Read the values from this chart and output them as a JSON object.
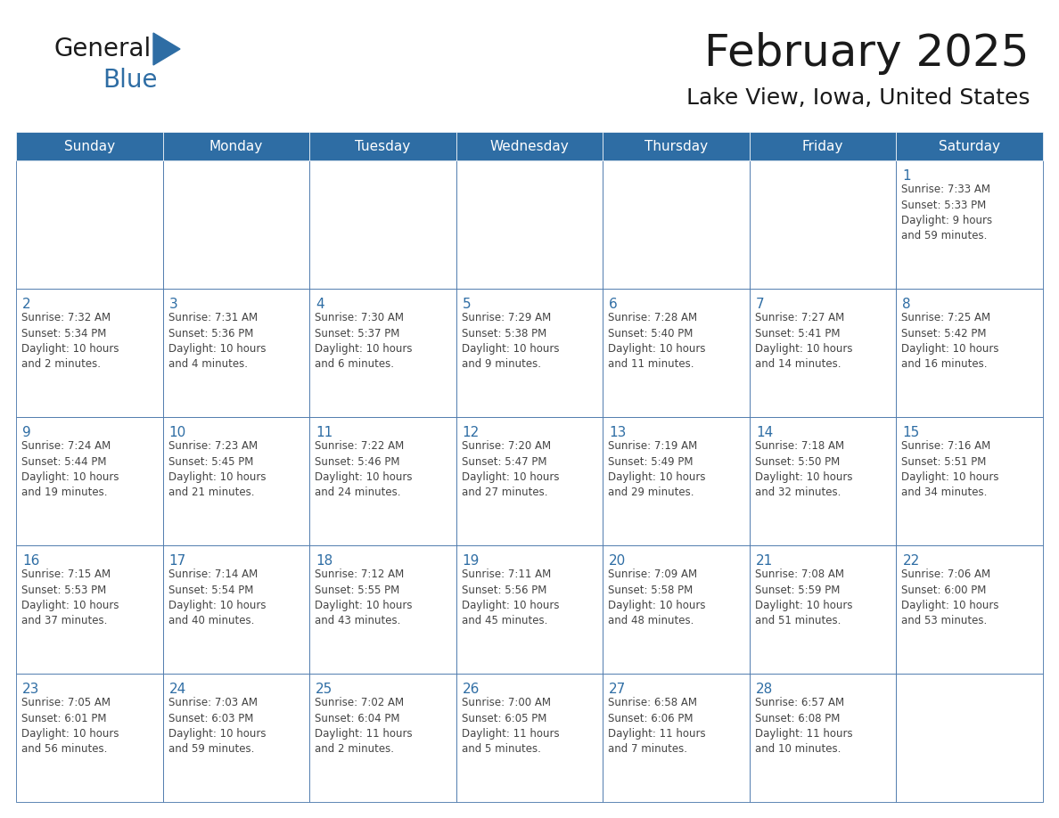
{
  "title": "February 2025",
  "subtitle": "Lake View, Iowa, United States",
  "header_color": "#2E6DA4",
  "header_text_color": "#FFFFFF",
  "cell_bg_color": "#FFFFFF",
  "cell_alt_bg": "#F2F2F2",
  "border_color": "#4472A8",
  "day_number_color": "#2E6DA4",
  "cell_text_color": "#444444",
  "days_of_week": [
    "Sunday",
    "Monday",
    "Tuesday",
    "Wednesday",
    "Thursday",
    "Friday",
    "Saturday"
  ],
  "weeks": [
    [
      {
        "day": "",
        "text": ""
      },
      {
        "day": "",
        "text": ""
      },
      {
        "day": "",
        "text": ""
      },
      {
        "day": "",
        "text": ""
      },
      {
        "day": "",
        "text": ""
      },
      {
        "day": "",
        "text": ""
      },
      {
        "day": "1",
        "text": "Sunrise: 7:33 AM\nSunset: 5:33 PM\nDaylight: 9 hours\nand 59 minutes."
      }
    ],
    [
      {
        "day": "2",
        "text": "Sunrise: 7:32 AM\nSunset: 5:34 PM\nDaylight: 10 hours\nand 2 minutes."
      },
      {
        "day": "3",
        "text": "Sunrise: 7:31 AM\nSunset: 5:36 PM\nDaylight: 10 hours\nand 4 minutes."
      },
      {
        "day": "4",
        "text": "Sunrise: 7:30 AM\nSunset: 5:37 PM\nDaylight: 10 hours\nand 6 minutes."
      },
      {
        "day": "5",
        "text": "Sunrise: 7:29 AM\nSunset: 5:38 PM\nDaylight: 10 hours\nand 9 minutes."
      },
      {
        "day": "6",
        "text": "Sunrise: 7:28 AM\nSunset: 5:40 PM\nDaylight: 10 hours\nand 11 minutes."
      },
      {
        "day": "7",
        "text": "Sunrise: 7:27 AM\nSunset: 5:41 PM\nDaylight: 10 hours\nand 14 minutes."
      },
      {
        "day": "8",
        "text": "Sunrise: 7:25 AM\nSunset: 5:42 PM\nDaylight: 10 hours\nand 16 minutes."
      }
    ],
    [
      {
        "day": "9",
        "text": "Sunrise: 7:24 AM\nSunset: 5:44 PM\nDaylight: 10 hours\nand 19 minutes."
      },
      {
        "day": "10",
        "text": "Sunrise: 7:23 AM\nSunset: 5:45 PM\nDaylight: 10 hours\nand 21 minutes."
      },
      {
        "day": "11",
        "text": "Sunrise: 7:22 AM\nSunset: 5:46 PM\nDaylight: 10 hours\nand 24 minutes."
      },
      {
        "day": "12",
        "text": "Sunrise: 7:20 AM\nSunset: 5:47 PM\nDaylight: 10 hours\nand 27 minutes."
      },
      {
        "day": "13",
        "text": "Sunrise: 7:19 AM\nSunset: 5:49 PM\nDaylight: 10 hours\nand 29 minutes."
      },
      {
        "day": "14",
        "text": "Sunrise: 7:18 AM\nSunset: 5:50 PM\nDaylight: 10 hours\nand 32 minutes."
      },
      {
        "day": "15",
        "text": "Sunrise: 7:16 AM\nSunset: 5:51 PM\nDaylight: 10 hours\nand 34 minutes."
      }
    ],
    [
      {
        "day": "16",
        "text": "Sunrise: 7:15 AM\nSunset: 5:53 PM\nDaylight: 10 hours\nand 37 minutes."
      },
      {
        "day": "17",
        "text": "Sunrise: 7:14 AM\nSunset: 5:54 PM\nDaylight: 10 hours\nand 40 minutes."
      },
      {
        "day": "18",
        "text": "Sunrise: 7:12 AM\nSunset: 5:55 PM\nDaylight: 10 hours\nand 43 minutes."
      },
      {
        "day": "19",
        "text": "Sunrise: 7:11 AM\nSunset: 5:56 PM\nDaylight: 10 hours\nand 45 minutes."
      },
      {
        "day": "20",
        "text": "Sunrise: 7:09 AM\nSunset: 5:58 PM\nDaylight: 10 hours\nand 48 minutes."
      },
      {
        "day": "21",
        "text": "Sunrise: 7:08 AM\nSunset: 5:59 PM\nDaylight: 10 hours\nand 51 minutes."
      },
      {
        "day": "22",
        "text": "Sunrise: 7:06 AM\nSunset: 6:00 PM\nDaylight: 10 hours\nand 53 minutes."
      }
    ],
    [
      {
        "day": "23",
        "text": "Sunrise: 7:05 AM\nSunset: 6:01 PM\nDaylight: 10 hours\nand 56 minutes."
      },
      {
        "day": "24",
        "text": "Sunrise: 7:03 AM\nSunset: 6:03 PM\nDaylight: 10 hours\nand 59 minutes."
      },
      {
        "day": "25",
        "text": "Sunrise: 7:02 AM\nSunset: 6:04 PM\nDaylight: 11 hours\nand 2 minutes."
      },
      {
        "day": "26",
        "text": "Sunrise: 7:00 AM\nSunset: 6:05 PM\nDaylight: 11 hours\nand 5 minutes."
      },
      {
        "day": "27",
        "text": "Sunrise: 6:58 AM\nSunset: 6:06 PM\nDaylight: 11 hours\nand 7 minutes."
      },
      {
        "day": "28",
        "text": "Sunrise: 6:57 AM\nSunset: 6:08 PM\nDaylight: 11 hours\nand 10 minutes."
      },
      {
        "day": "",
        "text": ""
      }
    ]
  ],
  "logo_text_general": "General",
  "logo_text_blue": "Blue",
  "logo_triangle_color": "#2E6DA4",
  "logo_general_color": "#1a1a1a"
}
